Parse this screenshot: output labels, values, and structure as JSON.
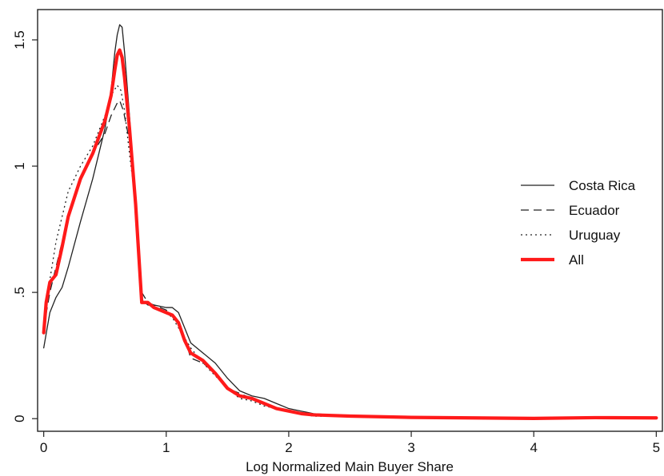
{
  "chart_data": {
    "type": "line",
    "title": "",
    "xlabel": "Log Normalized Main Buyer Share",
    "ylabel": "",
    "xlim": [
      -0.05,
      5.05
    ],
    "ylim": [
      -0.05,
      1.62
    ],
    "xticks": [
      0,
      1,
      2,
      3,
      4,
      5
    ],
    "xtick_labels": [
      "0",
      "1",
      "2",
      "3",
      "4",
      "5"
    ],
    "yticks": [
      0,
      0.5,
      1,
      1.5
    ],
    "ytick_labels": [
      "0",
      ".5",
      "1",
      "1.5"
    ],
    "grid": false,
    "legend_position": "right",
    "series": [
      {
        "name": "Costa Rica",
        "style": "solid",
        "color": "#222222",
        "width": 1.3,
        "x": [
          0,
          0.05,
          0.1,
          0.15,
          0.2,
          0.3,
          0.4,
          0.5,
          0.55,
          0.58,
          0.6,
          0.62,
          0.64,
          0.66,
          0.7,
          0.75,
          0.8,
          0.85,
          0.9,
          1.0,
          1.05,
          1.1,
          1.15,
          1.2,
          1.3,
          1.4,
          1.5,
          1.6,
          1.7,
          1.8,
          1.9,
          2.0,
          2.1,
          2.2,
          2.5,
          3.0,
          3.5,
          4.0,
          4.5,
          5.0
        ],
        "y": [
          0.28,
          0.42,
          0.48,
          0.52,
          0.6,
          0.78,
          0.95,
          1.15,
          1.3,
          1.45,
          1.52,
          1.56,
          1.55,
          1.45,
          1.2,
          0.85,
          0.47,
          0.45,
          0.45,
          0.44,
          0.44,
          0.42,
          0.36,
          0.3,
          0.26,
          0.22,
          0.16,
          0.11,
          0.09,
          0.08,
          0.06,
          0.04,
          0.03,
          0.02,
          0.01,
          0.005,
          0.003,
          0.002,
          0.004,
          0.003
        ]
      },
      {
        "name": "Ecuador",
        "style": "dashed",
        "color": "#222222",
        "width": 1.3,
        "x": [
          0,
          0.05,
          0.1,
          0.15,
          0.2,
          0.3,
          0.4,
          0.5,
          0.55,
          0.6,
          0.62,
          0.65,
          0.7,
          0.75,
          0.8,
          0.85,
          0.9,
          1.0,
          1.1,
          1.15,
          1.2,
          1.3,
          1.4,
          1.5,
          1.6,
          1.7,
          1.8,
          1.9,
          2.0,
          2.1,
          2.2,
          2.5,
          3.0,
          3.5,
          4.0,
          4.5,
          5.0
        ],
        "y": [
          0.36,
          0.5,
          0.6,
          0.7,
          0.8,
          0.95,
          1.05,
          1.13,
          1.2,
          1.25,
          1.26,
          1.22,
          1.1,
          0.85,
          0.5,
          0.46,
          0.45,
          0.43,
          0.38,
          0.32,
          0.24,
          0.22,
          0.18,
          0.12,
          0.1,
          0.08,
          0.06,
          0.045,
          0.03,
          0.02,
          0.015,
          0.01,
          0.005,
          0.003,
          0.002,
          0.004,
          0.003
        ]
      },
      {
        "name": "Uruguay",
        "style": "dotted",
        "color": "#222222",
        "width": 1.3,
        "x": [
          0,
          0.05,
          0.1,
          0.15,
          0.2,
          0.3,
          0.4,
          0.5,
          0.55,
          0.6,
          0.63,
          0.66,
          0.7,
          0.75,
          0.8,
          0.85,
          0.9,
          1.0,
          1.05,
          1.1,
          1.2,
          1.3,
          1.4,
          1.5,
          1.6,
          1.7,
          1.8,
          1.9,
          2.0,
          2.1,
          2.2,
          2.5,
          3.0,
          3.5,
          4.0,
          4.5,
          5.0
        ],
        "y": [
          0.35,
          0.55,
          0.7,
          0.8,
          0.9,
          1.0,
          1.08,
          1.2,
          1.28,
          1.32,
          1.3,
          1.22,
          1.05,
          0.85,
          0.47,
          0.46,
          0.44,
          0.42,
          0.4,
          0.36,
          0.28,
          0.22,
          0.17,
          0.12,
          0.08,
          0.07,
          0.05,
          0.04,
          0.03,
          0.02,
          0.01,
          0.008,
          0.005,
          0.003,
          0.002,
          0.004,
          0.003
        ]
      },
      {
        "name": "All",
        "style": "solid",
        "color": "#ff1a1a",
        "width": 4.2,
        "x": [
          0,
          0.02,
          0.05,
          0.1,
          0.15,
          0.2,
          0.3,
          0.4,
          0.5,
          0.55,
          0.58,
          0.6,
          0.62,
          0.64,
          0.66,
          0.7,
          0.75,
          0.8,
          0.85,
          0.9,
          1.0,
          1.05,
          1.1,
          1.15,
          1.2,
          1.3,
          1.4,
          1.5,
          1.6,
          1.7,
          1.8,
          1.9,
          2.0,
          2.1,
          2.2,
          2.5,
          3.0,
          3.5,
          4.0,
          4.5,
          5.0
        ],
        "y": [
          0.34,
          0.46,
          0.54,
          0.57,
          0.68,
          0.8,
          0.95,
          1.05,
          1.18,
          1.28,
          1.38,
          1.44,
          1.46,
          1.43,
          1.35,
          1.15,
          0.85,
          0.46,
          0.46,
          0.44,
          0.42,
          0.41,
          0.38,
          0.31,
          0.26,
          0.23,
          0.18,
          0.12,
          0.09,
          0.08,
          0.06,
          0.04,
          0.03,
          0.02,
          0.015,
          0.01,
          0.005,
          0.003,
          0.001,
          0.004,
          0.003
        ]
      }
    ]
  }
}
